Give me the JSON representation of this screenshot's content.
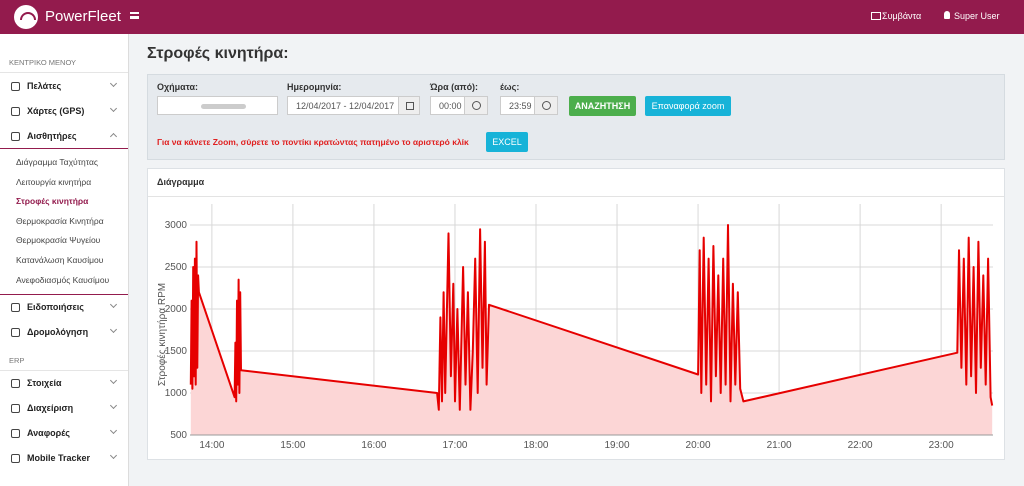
{
  "header": {
    "brand": "PowerFleet",
    "events": "Συμβάντα",
    "user": "Super User"
  },
  "sidebar": {
    "main_heading": "ΚΕΝΤΡΙΚΟ ΜΕΝΟΥ",
    "main_items": [
      "Πελάτες",
      "Χάρτες (GPS)",
      "Αισθητήρες"
    ],
    "sensor_items": [
      "Διάγραμμα Ταχύτητας",
      "Λειτουργία κινητήρα",
      "Στροφές κινητήρα",
      "Θερμοκρασία Κινητήρα",
      "Θερμοκρασία Ψυγείου",
      "Κατανάλωση Καυσίμου",
      "Ανεφοδιασμός Καυσίμου"
    ],
    "more_items": [
      "Ειδοποιήσεις",
      "Δρομολόγηση"
    ],
    "erp_heading": "ERP",
    "erp_items": [
      "Στοιχεία",
      "Διαχείριση",
      "Αναφορές",
      "Mobile Tracker"
    ]
  },
  "page_title": "Στροφές κινητήρα:",
  "filters": {
    "vehicles_label": "Οχήματα:",
    "date_label": "Ημερομηνία:",
    "date_value": "12/04/2017 - 12/04/2017",
    "from_label": "Ώρα (από):",
    "from_value": "00:00",
    "to_label": "έως:",
    "to_value": "23:59",
    "search_button": "ΑΝΑΖΗΤΗΣΗ",
    "reset_zoom_button": "Επαναφορά zoom",
    "hint": "Για να κάνετε Zoom, σύρετε το ποντίκι κρατώντας πατημένο το αριστερό κλίκ",
    "excel_button": "EXCEL"
  },
  "chart_data": {
    "type": "line",
    "title": "Διάγραμμα",
    "y_label": "Στροφές κινητήρα RPM",
    "x": [
      13.74,
      13.75,
      13.76,
      13.77,
      13.78,
      13.79,
      13.8,
      13.81,
      13.82,
      13.83,
      13.84,
      14.28,
      14.29,
      14.3,
      14.31,
      14.32,
      14.33,
      14.34,
      14.35,
      14.36,
      16.78,
      16.8,
      16.82,
      16.84,
      16.86,
      16.88,
      16.92,
      16.95,
      16.98,
      17.0,
      17.03,
      17.06,
      17.1,
      17.13,
      17.16,
      17.19,
      17.22,
      17.25,
      17.28,
      17.31,
      17.34,
      17.37,
      17.39,
      17.42,
      20.0,
      20.02,
      20.04,
      20.07,
      20.1,
      20.13,
      20.16,
      20.19,
      20.22,
      20.25,
      20.28,
      20.31,
      20.34,
      20.37,
      20.4,
      20.43,
      20.46,
      20.49,
      20.52,
      20.56,
      23.2,
      23.22,
      23.25,
      23.28,
      23.31,
      23.34,
      23.37,
      23.4,
      23.43,
      23.46,
      23.49,
      23.52,
      23.55,
      23.58,
      23.61,
      23.63
    ],
    "series": [
      {
        "color": "#e60000",
        "values": [
          1100,
          2100,
          1050,
          2500,
          1200,
          2600,
          1100,
          2800,
          1300,
          2400,
          2200,
          950,
          1600,
          900,
          2100,
          1100,
          2350,
          1000,
          2200,
          1270,
          1000,
          800,
          1900,
          900,
          2200,
          1000,
          2900,
          1200,
          2300,
          900,
          2000,
          800,
          2500,
          1100,
          2200,
          800,
          1500,
          2600,
          1000,
          2950,
          1300,
          2800,
          1100,
          2050,
          1220,
          2700,
          1000,
          2850,
          1100,
          2600,
          900,
          2750,
          1200,
          2400,
          1000,
          2600,
          1100,
          3000,
          900,
          2300,
          1100,
          2200,
          1050,
          900,
          1480,
          2700,
          1300,
          2600,
          1100,
          2850,
          1200,
          2500,
          1000,
          2800,
          1300,
          2400,
          1100,
          2600,
          950,
          850
        ]
      }
    ],
    "xlim": [
      13.73,
      23.64
    ],
    "ylim": [
      500,
      3250
    ],
    "xticks": [
      {
        "value": 14,
        "label": "14:00"
      },
      {
        "value": 15,
        "label": "15:00"
      },
      {
        "value": 16,
        "label": "16:00"
      },
      {
        "value": 17,
        "label": "17:00"
      },
      {
        "value": 18,
        "label": "18:00"
      },
      {
        "value": 19,
        "label": "19:00"
      },
      {
        "value": 20,
        "label": "20:00"
      },
      {
        "value": 21,
        "label": "21:00"
      },
      {
        "value": 22,
        "label": "22:00"
      },
      {
        "value": 23,
        "label": "23:00"
      }
    ],
    "yticks": [
      500,
      1000,
      1500,
      2000,
      2500,
      3000
    ],
    "grid": true,
    "area_color": "#fcd6d6"
  }
}
